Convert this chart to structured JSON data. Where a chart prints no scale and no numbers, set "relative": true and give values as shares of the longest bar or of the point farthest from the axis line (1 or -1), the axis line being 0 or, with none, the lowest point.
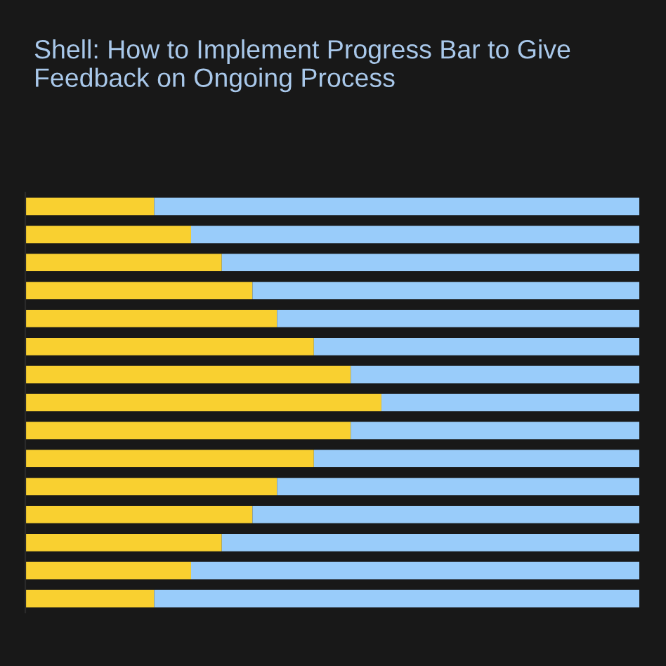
{
  "chart_data": {
    "type": "bar",
    "title": "Shell: How to Implement Progress Bar to Give Feedback on Ongoing Process",
    "orientation": "horizontal",
    "stacked": true,
    "relative": true,
    "categories": [
      null,
      null,
      null,
      null,
      null,
      null,
      null,
      null,
      null,
      null,
      null,
      null,
      null,
      null,
      null
    ],
    "series": [
      {
        "color": "#f9d030",
        "values": [
          0.21,
          0.27,
          0.32,
          0.37,
          0.41,
          0.47,
          0.53,
          0.58,
          0.53,
          0.47,
          0.41,
          0.37,
          0.32,
          0.27,
          0.21
        ]
      },
      {
        "color": "#99ccfa",
        "values": [
          0.79,
          0.73,
          0.68,
          0.63,
          0.59,
          0.53,
          0.47,
          0.42,
          0.47,
          0.53,
          0.59,
          0.63,
          0.68,
          0.73,
          0.79
        ]
      }
    ]
  }
}
